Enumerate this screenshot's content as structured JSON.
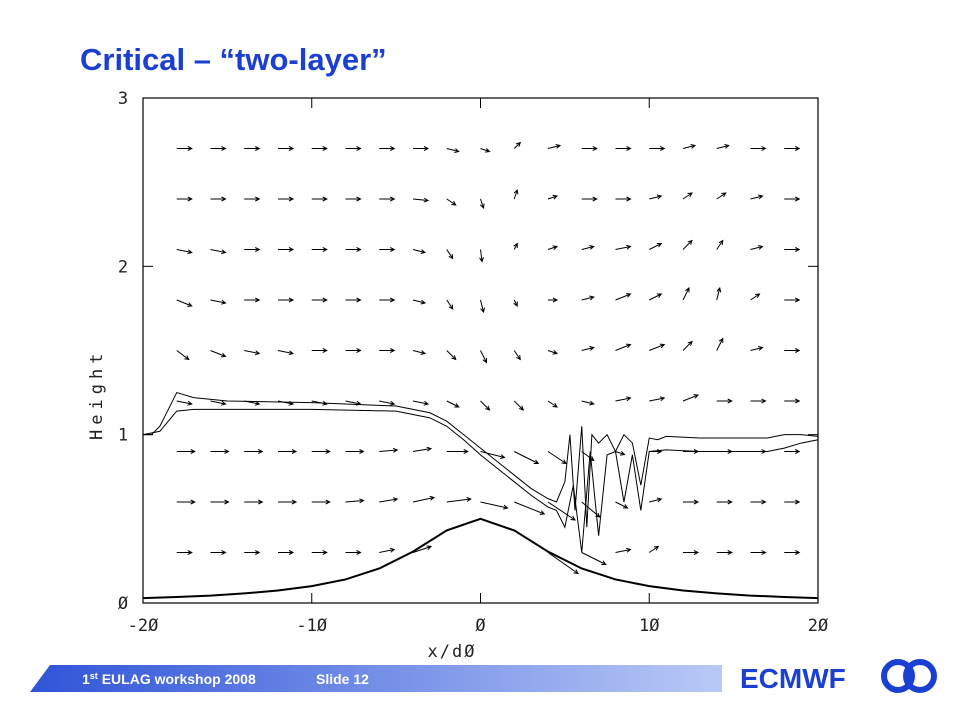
{
  "title": "Critical – “two-layer”",
  "footer": {
    "event_parts": [
      "1",
      "st",
      " EULAG workshop 2008"
    ],
    "slide": "Slide 12",
    "brand": "ECMWF"
  },
  "chart_data": {
    "type": "vector_contour",
    "xlabel": "x/dØ",
    "ylabel": "Height",
    "xlim": [
      -20,
      20
    ],
    "ylim": [
      0,
      3
    ],
    "xticks": [
      {
        "value": -20,
        "label": "-2Ø"
      },
      {
        "value": -10,
        "label": "-1Ø"
      },
      {
        "value": 0,
        "label": "Ø"
      },
      {
        "value": 10,
        "label": "1Ø"
      },
      {
        "value": 20,
        "label": "2Ø"
      }
    ],
    "yticks": [
      {
        "value": 0,
        "label": "Ø"
      },
      1,
      2,
      3
    ],
    "series": [
      {
        "color": "#000000",
        "width": 2,
        "x": [
          -20,
          -18,
          -16,
          -14,
          -12,
          -10,
          -8,
          -6,
          -4,
          -2,
          0,
          2,
          4,
          6,
          8,
          10,
          12,
          14,
          16,
          18,
          20
        ],
        "values": [
          0.029,
          0.036,
          0.044,
          0.057,
          0.074,
          0.1,
          0.14,
          0.205,
          0.305,
          0.431,
          0.5,
          0.431,
          0.305,
          0.205,
          0.14,
          0.1,
          0.074,
          0.057,
          0.044,
          0.036,
          0.029
        ]
      },
      {
        "color": "#000000",
        "width": 1,
        "x": [
          -20,
          -19.5,
          -19,
          -18.5,
          -18,
          -17,
          -15,
          -10,
          -5,
          -3,
          -2,
          -1,
          0,
          1,
          2,
          3,
          4,
          4.5,
          5,
          5.3,
          5.6,
          6,
          6.3,
          6.6,
          7,
          7.5,
          8,
          8.5,
          9,
          9.5,
          10,
          10.5,
          11,
          13,
          15,
          17,
          18,
          19,
          20
        ],
        "values": [
          1.0,
          1.0,
          1.05,
          1.15,
          1.25,
          1.22,
          1.2,
          1.19,
          1.17,
          1.13,
          1.08,
          1.0,
          0.92,
          0.84,
          0.76,
          0.68,
          0.62,
          0.6,
          0.72,
          1.0,
          0.55,
          1.05,
          0.45,
          1.0,
          0.95,
          1.0,
          0.9,
          1.0,
          0.95,
          0.7,
          0.98,
          0.97,
          0.99,
          0.98,
          0.98,
          0.98,
          1.0,
          1.0,
          0.99
        ]
      },
      {
        "color": "#000000",
        "width": 1,
        "x": [
          -20,
          -19,
          -18.5,
          -18,
          -17,
          -15,
          -10,
          -5,
          -3,
          -2,
          -1,
          0,
          1,
          2,
          3,
          4,
          4.5,
          5,
          5.5,
          6,
          6.5,
          7,
          7.5,
          8,
          8.5,
          9,
          9.5,
          10,
          11,
          13,
          15,
          17,
          18,
          19,
          20
        ],
        "values": [
          1.0,
          1.02,
          1.08,
          1.14,
          1.15,
          1.15,
          1.15,
          1.14,
          1.1,
          1.05,
          0.97,
          0.88,
          0.8,
          0.72,
          0.64,
          0.57,
          0.55,
          0.45,
          0.7,
          0.3,
          0.9,
          0.4,
          0.88,
          0.9,
          0.6,
          0.88,
          0.55,
          0.9,
          0.91,
          0.9,
          0.9,
          0.9,
          0.92,
          0.95,
          0.97
        ]
      }
    ],
    "vectors": {
      "x": [
        -18,
        -16,
        -14,
        -12,
        -10,
        -8,
        -6,
        -4,
        -2,
        0,
        2,
        4,
        6,
        8,
        10,
        12,
        14,
        16,
        18
      ],
      "y": [
        0.3,
        0.6,
        0.9,
        1.2,
        1.5,
        1.8,
        2.1,
        2.4,
        2.7
      ],
      "u": [
        [
          0.5,
          0.5,
          0.5,
          0.5,
          0.5,
          0.5,
          0.5,
          0.6,
          null,
          null,
          null,
          1.0,
          0.8,
          0.5,
          0.3,
          0.5,
          0.5,
          0.5,
          0.5
        ],
        [
          0.6,
          0.6,
          0.6,
          0.6,
          0.6,
          0.6,
          0.6,
          0.7,
          0.8,
          0.9,
          1.0,
          0.9,
          0.6,
          0.4,
          0.4,
          0.5,
          0.5,
          0.5,
          0.5
        ],
        [
          0.6,
          0.6,
          0.6,
          0.6,
          0.6,
          0.6,
          0.6,
          0.6,
          0.7,
          0.8,
          0.8,
          0.6,
          0.4,
          0.3,
          0.4,
          0.5,
          0.5,
          0.5,
          0.5
        ],
        [
          0.5,
          0.5,
          0.5,
          0.5,
          0.5,
          0.5,
          0.5,
          0.5,
          0.4,
          0.3,
          0.3,
          0.3,
          0.4,
          0.5,
          0.5,
          0.5,
          0.5,
          0.5,
          0.5
        ],
        [
          0.4,
          0.5,
          0.5,
          0.5,
          0.5,
          0.5,
          0.5,
          0.4,
          0.3,
          0.2,
          0.2,
          0.3,
          0.4,
          0.5,
          0.5,
          0.3,
          0.2,
          0.4,
          0.5
        ],
        [
          0.5,
          0.5,
          0.5,
          0.5,
          0.5,
          0.5,
          0.5,
          0.4,
          0.2,
          0.1,
          0.1,
          0.3,
          0.4,
          0.5,
          0.4,
          0.2,
          0.1,
          0.3,
          0.5
        ],
        [
          0.5,
          0.5,
          0.5,
          0.5,
          0.5,
          0.5,
          0.5,
          0.4,
          0.2,
          0.05,
          0.1,
          0.3,
          0.4,
          0.5,
          0.4,
          0.3,
          0.2,
          0.4,
          0.5
        ],
        [
          0.5,
          0.5,
          0.5,
          0.5,
          0.5,
          0.5,
          0.5,
          0.5,
          0.3,
          0.1,
          0.1,
          0.3,
          0.5,
          0.5,
          0.4,
          0.3,
          0.3,
          0.4,
          0.5
        ],
        [
          0.5,
          0.5,
          0.5,
          0.5,
          0.5,
          0.5,
          0.5,
          0.5,
          0.4,
          0.3,
          0.2,
          0.4,
          0.5,
          0.5,
          0.5,
          0.4,
          0.4,
          0.5,
          0.5
        ]
      ],
      "v": [
        [
          0,
          0,
          0,
          0,
          0,
          0,
          0.1,
          0.2,
          null,
          null,
          null,
          -0.7,
          -0.4,
          0.1,
          0.2,
          0,
          0,
          0,
          0
        ],
        [
          0,
          0,
          0,
          0,
          0,
          0.05,
          0.1,
          0.15,
          0.1,
          -0.2,
          -0.4,
          -0.6,
          -0.5,
          -0.2,
          0.1,
          0,
          0,
          0,
          0
        ],
        [
          0,
          0,
          0,
          0,
          0,
          0,
          0.05,
          0.1,
          0,
          -0.2,
          -0.4,
          -0.4,
          -0.3,
          -0.1,
          0,
          0,
          0,
          0,
          0
        ],
        [
          -0.1,
          -0.1,
          -0.1,
          -0.1,
          -0.1,
          -0.1,
          -0.1,
          -0.1,
          -0.2,
          -0.3,
          -0.3,
          -0.2,
          -0.1,
          0.1,
          0.1,
          0.2,
          0,
          0,
          0
        ],
        [
          -0.3,
          -0.2,
          -0.1,
          -0.1,
          0,
          0,
          0,
          -0.1,
          -0.3,
          -0.4,
          -0.3,
          -0.1,
          0.1,
          0.2,
          0.2,
          0.3,
          0.4,
          0.1,
          0
        ],
        [
          -0.2,
          -0.1,
          0,
          0,
          0,
          0,
          0,
          -0.1,
          -0.3,
          -0.4,
          -0.2,
          0,
          0.1,
          0.2,
          0.2,
          0.4,
          0.4,
          0.2,
          0
        ],
        [
          -0.1,
          -0.1,
          0,
          0,
          0,
          0,
          0,
          -0.1,
          -0.3,
          -0.4,
          0.2,
          0.1,
          0.1,
          0.1,
          0.2,
          0.3,
          0.3,
          0.1,
          0
        ],
        [
          0,
          0,
          0,
          0,
          0,
          0,
          0,
          -0.05,
          -0.2,
          -0.3,
          0.3,
          0.1,
          0,
          0,
          0.1,
          0.2,
          0.2,
          0.1,
          0
        ],
        [
          0,
          0,
          0,
          0,
          0,
          0,
          0,
          0,
          -0.1,
          -0.1,
          0.2,
          0.1,
          0,
          0,
          0,
          0.1,
          0.1,
          0,
          0
        ]
      ]
    }
  }
}
